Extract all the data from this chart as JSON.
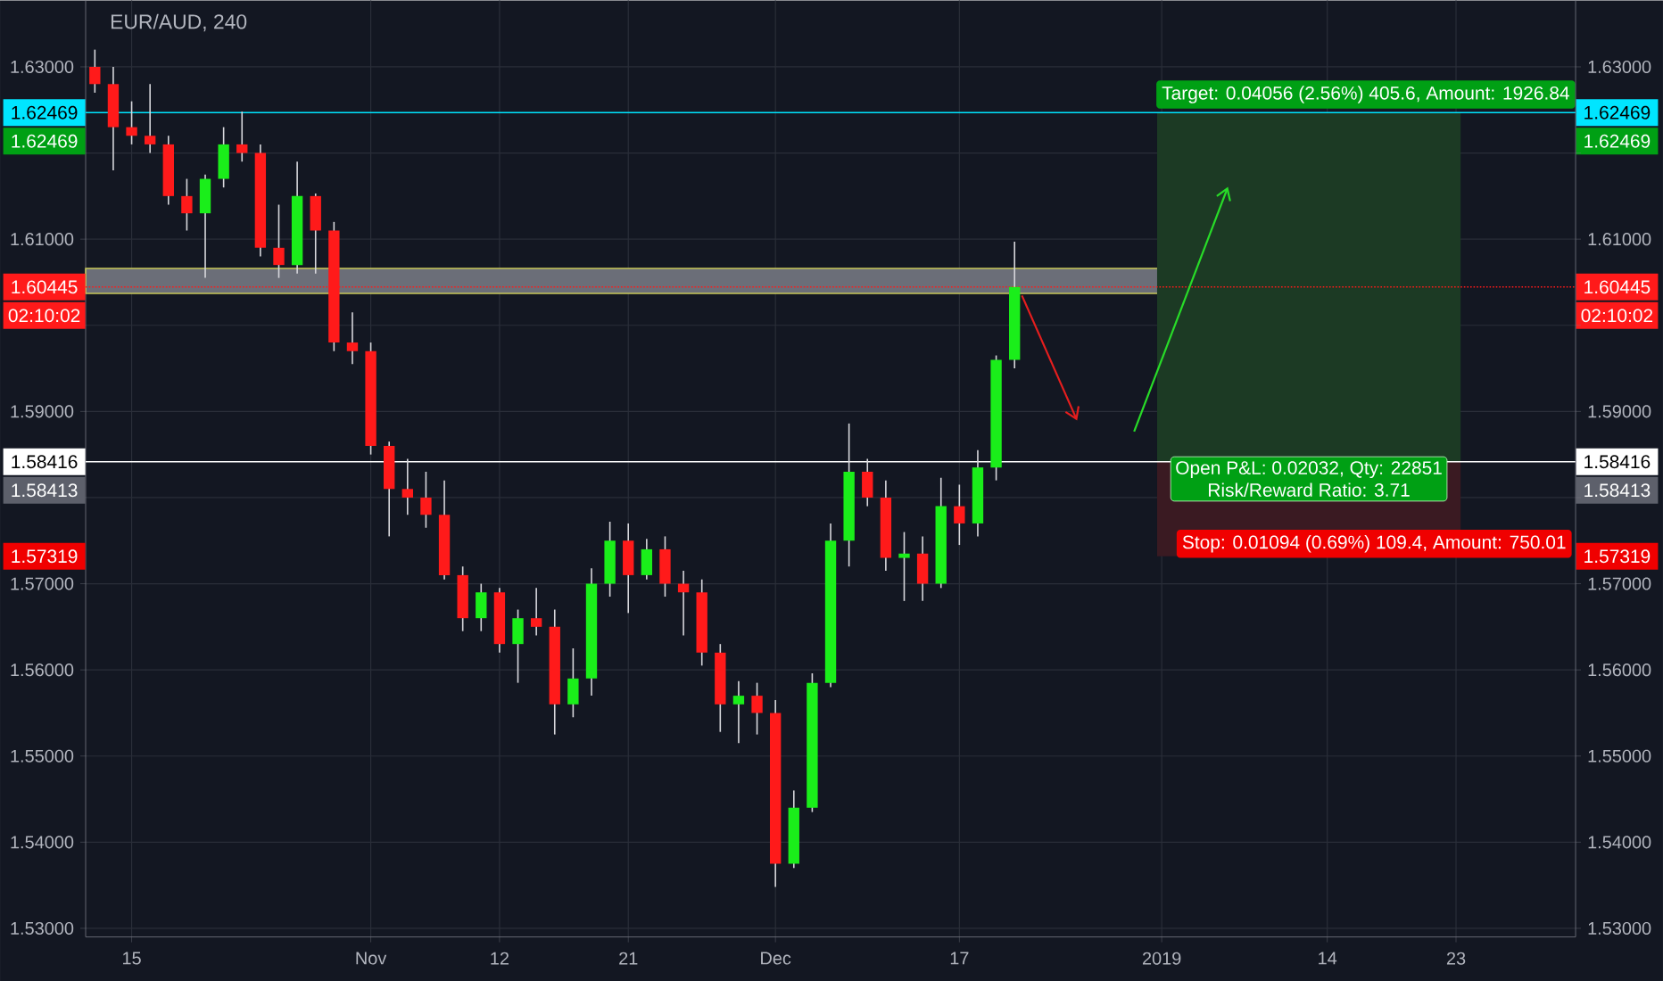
{
  "chart_data": {
    "type": "candlestick",
    "title": "EUR/AUD, 240",
    "categories": [
      null,
      null,
      "15",
      null,
      null,
      null,
      null,
      null,
      null,
      null,
      null,
      null,
      null,
      null,
      null,
      "Nov",
      null,
      null,
      null,
      null,
      null,
      null,
      "12",
      null,
      null,
      null,
      null,
      null,
      null,
      "21",
      null,
      null,
      null,
      null,
      null,
      null,
      null,
      "Dec",
      null,
      null,
      null,
      null,
      null,
      null,
      null,
      null,
      null,
      "17",
      null,
      null,
      null,
      null,
      null,
      null,
      null,
      null,
      null,
      null,
      "2019",
      null,
      null,
      null,
      null,
      null,
      null,
      null,
      null,
      "14",
      null,
      null,
      null,
      null,
      null,
      null,
      "23",
      null,
      null,
      null,
      null,
      null,
      null
    ],
    "ohlc": [
      [
        1.63,
        1.632,
        1.627,
        1.628
      ],
      [
        1.628,
        1.63,
        1.618,
        1.623
      ],
      [
        1.623,
        1.626,
        1.621,
        1.622
      ],
      [
        1.622,
        1.628,
        1.62,
        1.621
      ],
      [
        1.621,
        1.622,
        1.614,
        1.615
      ],
      [
        1.615,
        1.617,
        1.611,
        1.613
      ],
      [
        1.613,
        1.6175,
        1.6055,
        1.617
      ],
      [
        1.617,
        1.623,
        1.616,
        1.621
      ],
      [
        1.621,
        1.6248,
        1.619,
        1.62
      ],
      [
        1.62,
        1.621,
        1.608,
        1.609
      ],
      [
        1.609,
        1.614,
        1.6055,
        1.607
      ],
      [
        1.607,
        1.619,
        1.606,
        1.615
      ],
      [
        1.615,
        1.6153,
        1.606,
        1.611
      ],
      [
        1.611,
        1.612,
        1.597,
        1.598
      ],
      [
        1.598,
        1.6015,
        1.5955,
        1.597
      ],
      [
        1.597,
        1.598,
        1.585,
        1.586
      ],
      [
        1.586,
        1.5865,
        1.5755,
        1.581
      ],
      [
        1.581,
        1.5845,
        1.578,
        1.58
      ],
      [
        1.58,
        1.583,
        1.5765,
        1.578
      ],
      [
        1.578,
        1.582,
        1.5705,
        1.571
      ],
      [
        1.571,
        1.572,
        1.5645,
        1.566
      ],
      [
        1.566,
        1.57,
        1.5645,
        1.569
      ],
      [
        1.569,
        1.5695,
        1.562,
        1.563
      ],
      [
        1.563,
        1.567,
        1.5585,
        1.566
      ],
      [
        1.566,
        1.5695,
        1.564,
        1.565
      ],
      [
        1.565,
        1.567,
        1.5525,
        1.556
      ],
      [
        1.556,
        1.5625,
        1.5545,
        1.559
      ],
      [
        1.559,
        1.5718,
        1.557,
        1.57
      ],
      [
        1.57,
        1.5772,
        1.5685,
        1.575
      ],
      [
        1.575,
        1.577,
        1.5666,
        1.571
      ],
      [
        1.571,
        1.5752,
        1.5705,
        1.574
      ],
      [
        1.574,
        1.5755,
        1.5685,
        1.57
      ],
      [
        1.57,
        1.5715,
        1.564,
        1.569
      ],
      [
        1.569,
        1.5705,
        1.5605,
        1.562
      ],
      [
        1.562,
        1.563,
        1.5528,
        1.556
      ],
      [
        1.556,
        1.5587,
        1.5515,
        1.557
      ],
      [
        1.557,
        1.5585,
        1.5525,
        1.555
      ],
      [
        1.555,
        1.5565,
        1.5348,
        1.5375
      ],
      [
        1.5375,
        1.546,
        1.537,
        1.544
      ],
      [
        1.544,
        1.5596,
        1.5435,
        1.5585
      ],
      [
        1.5585,
        1.577,
        1.558,
        1.575
      ],
      [
        1.575,
        1.5886,
        1.572,
        1.583
      ],
      [
        1.583,
        1.5845,
        1.579,
        1.58
      ],
      [
        1.58,
        1.582,
        1.5715,
        1.573
      ],
      [
        1.573,
        1.576,
        1.568,
        1.5735
      ],
      [
        1.5735,
        1.5755,
        1.568,
        1.57
      ],
      [
        1.57,
        1.5823,
        1.5695,
        1.579
      ],
      [
        1.579,
        1.5815,
        1.5745,
        1.577
      ],
      [
        1.577,
        1.5855,
        1.5755,
        1.5835
      ],
      [
        1.5835,
        1.5965,
        1.582,
        1.596
      ],
      [
        1.596,
        1.6097,
        1.595,
        1.60445
      ],
      null,
      null,
      null,
      null,
      null,
      null,
      null,
      null,
      null,
      null,
      null,
      null,
      null,
      null,
      null,
      null,
      null,
      null,
      null,
      null,
      null,
      null,
      null,
      null,
      null,
      null,
      null,
      null,
      null,
      null
    ],
    "colors": [
      "#ff1a1a",
      "#ff1a1a",
      "#ff1a1a",
      "#ff1a1a",
      "#ff1a1a",
      "#ff1a1a",
      "#1aee1a",
      "#1aee1a",
      "#ff1a1a",
      "#ff1a1a",
      "#ff1a1a",
      "#1aee1a",
      "#ff1a1a",
      "#ff1a1a",
      "#ff1a1a",
      "#ff1a1a",
      "#ff1a1a",
      "#ff1a1a",
      "#ff1a1a",
      "#ff1a1a",
      "#ff1a1a",
      "#1aee1a",
      "#ff1a1a",
      "#1aee1a",
      "#ff1a1a",
      "#ff1a1a",
      "#1aee1a",
      "#1aee1a",
      "#1aee1a",
      "#ff1a1a",
      "#1aee1a",
      "#ff1a1a",
      "#ff1a1a",
      "#ff1a1a",
      "#ff1a1a",
      "#1aee1a",
      "#ff1a1a",
      "#ff1a1a",
      "#1aee1a",
      "#1aee1a",
      "#1aee1a",
      "#1aee1a",
      "#ff1a1a",
      "#ff1a1a",
      "#1aee1a",
      "#ff1a1a",
      "#1aee1a",
      "#ff1a1a",
      "#1aee1a",
      "#1aee1a",
      "#1aee1a",
      null,
      null,
      null,
      null,
      null,
      null,
      null,
      null,
      null,
      null,
      null,
      null,
      null,
      null,
      null,
      null,
      null,
      null,
      null,
      null,
      null,
      null,
      null,
      null,
      null,
      null,
      null,
      null,
      null,
      null
    ],
    "ylim": [
      1.529,
      1.6377
    ],
    "yticks": [
      {
        "value": 1.53,
        "label": "1.53000"
      },
      {
        "value": 1.54,
        "label": "1.54000"
      },
      {
        "value": 1.55,
        "label": "1.55000"
      },
      {
        "value": 1.56,
        "label": "1.56000"
      },
      {
        "value": 1.57,
        "label": "1.57000"
      },
      {
        "value": 1.58,
        "label": null
      },
      {
        "value": 1.59,
        "label": "1.59000"
      },
      {
        "value": 1.6,
        "label": null
      },
      {
        "value": 1.61,
        "label": "1.61000"
      },
      {
        "value": 1.62,
        "label": null
      },
      {
        "value": 1.63,
        "label": "1.63000"
      }
    ],
    "y2lim": [
      1.529,
      1.6377
    ],
    "y2ticks": [
      {
        "value": 1.53,
        "label": "1.53000"
      },
      {
        "value": 1.54,
        "label": "1.54000"
      },
      {
        "value": 1.55,
        "label": "1.55000"
      },
      {
        "value": 1.56,
        "label": "1.56000"
      },
      {
        "value": 1.57,
        "label": "1.57000"
      },
      {
        "value": 1.58,
        "label": null
      },
      {
        "value": 1.59,
        "label": "1.59000"
      },
      {
        "value": 1.6,
        "label": null
      },
      {
        "value": 1.61,
        "label": "1.61000"
      },
      {
        "value": 1.62,
        "label": null
      },
      {
        "value": 1.63,
        "label": "1.63000"
      }
    ],
    "grid": true,
    "ref_lines": [
      {
        "axis": "y",
        "value": 1.62469,
        "label": "1.62469",
        "color": "#00e5ff",
        "line_style": "solid"
      },
      {
        "axis": "y",
        "value": 1.60445,
        "label": "1.60445",
        "color": "#ff1a1a",
        "line_style": "dotted"
      },
      {
        "axis": "y",
        "value": 1.58416,
        "label": "1.58416",
        "color": "#ffffff",
        "line_style": "solid"
      }
    ],
    "bands": [
      {
        "axis": "y",
        "from": 1.6037,
        "to": 1.6066,
        "color": "#6b6e78"
      },
      {
        "axis": "y",
        "from": 1.58416,
        "to": 1.62469,
        "color": "#1c3a24"
      },
      {
        "axis": "y",
        "from": 1.58416,
        "to": 1.57319,
        "color": "#3a1a22"
      }
    ],
    "annotations": [
      "Target: 0.04056 (2.56%) 405.6, Amount: 1926.84",
      "Open P&L: 0.02032, Qty: 22851",
      "Risk/Reward Ratio: 3.71",
      "Stop: 0.01094 (0.69%) 109.4, Amount: 750.01",
      "02:10:02",
      "1.58413",
      "1.62469",
      "1.57319"
    ]
  }
}
